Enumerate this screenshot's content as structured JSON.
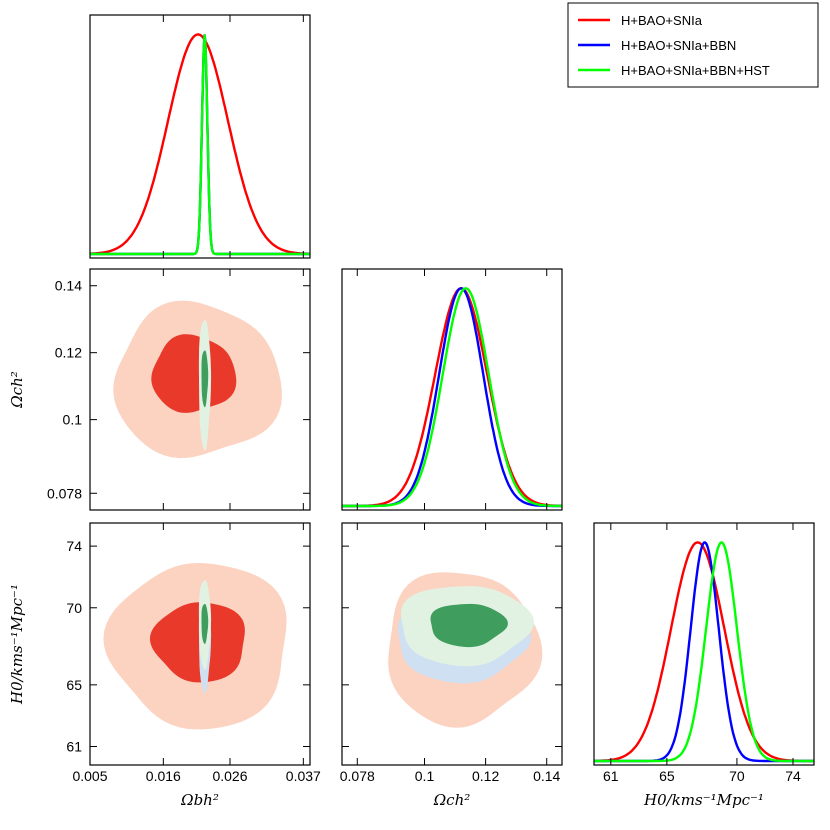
{
  "chart_data": {
    "type": "triangle-corner",
    "legend": {
      "placement": "top-right",
      "entries": [
        {
          "label": "H+BAO+SNIa",
          "color": "#ff0000"
        },
        {
          "label": "H+BAO+SNIa+BBN",
          "color": "#0000ff"
        },
        {
          "label": "H+BAO+SNIa+BBN+HST",
          "color": "#00ff00"
        }
      ]
    },
    "parameters": [
      {
        "id": "omega_b",
        "label": "Ωbh²",
        "range": [
          0.005,
          0.038
        ],
        "ticks": [
          0.005,
          0.016,
          0.026,
          0.037
        ],
        "tick_labels": [
          "0.005",
          "0.016",
          "0.026",
          "0.037"
        ]
      },
      {
        "id": "omega_c",
        "label": "Ωch²",
        "range": [
          0.073,
          0.145
        ],
        "ticks": [
          0.078,
          0.1,
          0.12,
          0.14
        ],
        "tick_labels": [
          "0.078",
          "0.1",
          "0.12",
          "0.14"
        ]
      },
      {
        "id": "H0",
        "label": "H0/kms⁻¹Mpc⁻¹",
        "range": [
          59.8,
          75.5
        ],
        "ticks": [
          61,
          65,
          70,
          74
        ],
        "tick_labels": [
          "61",
          "65",
          "70",
          "74"
        ]
      }
    ],
    "marginals": [
      {
        "param": "omega_b",
        "series": [
          {
            "name": "H+BAO+SNIa",
            "color": "#ff0000",
            "mean": 0.0212,
            "sigma": 0.0045
          },
          {
            "name": "H+BAO+SNIa+BBN",
            "color": "#0000ff",
            "mean": 0.0222,
            "sigma": 0.0004
          },
          {
            "name": "H+BAO+SNIa+BBN+HST",
            "color": "#00ff00",
            "mean": 0.0222,
            "sigma": 0.0004
          }
        ]
      },
      {
        "param": "omega_c",
        "series": [
          {
            "name": "H+BAO+SNIa",
            "color": "#ff0000",
            "mean": 0.112,
            "sigma": 0.0085
          },
          {
            "name": "H+BAO+SNIa+BBN",
            "color": "#0000ff",
            "mean": 0.112,
            "sigma": 0.0072
          },
          {
            "name": "H+BAO+SNIa+BBN+HST",
            "color": "#00ff00",
            "mean": 0.1135,
            "sigma": 0.0075
          }
        ]
      },
      {
        "param": "H0",
        "series": [
          {
            "name": "H+BAO+SNIa",
            "color": "#ff0000",
            "mean": 67.2,
            "sigma": 1.9
          },
          {
            "name": "H+BAO+SNIa+BBN",
            "color": "#0000ff",
            "mean": 67.7,
            "sigma": 1.0
          },
          {
            "name": "H+BAO+SNIa+BBN+HST",
            "color": "#00ff00",
            "mean": 68.9,
            "sigma": 1.1
          }
        ]
      }
    ],
    "contours": [
      {
        "x": "omega_b",
        "y": "omega_c",
        "regions": [
          {
            "name": "H+BAO+SNIa 95%",
            "fill": "#fcd2c1",
            "cx": 0.021,
            "cy": 0.1115,
            "rx": 0.0125,
            "ry": 0.023,
            "angle": -0.55
          },
          {
            "name": "H+BAO+SNIa 68%",
            "fill": "#e8392b",
            "cx": 0.0205,
            "cy": 0.1135,
            "rx": 0.0063,
            "ry": 0.0115,
            "angle": -0.55
          },
          {
            "name": "H+BAO+SNIa+BBN+HST 95%",
            "fill": "#e2f2e2",
            "cx": 0.0222,
            "cy": 0.111,
            "rx": 0.0009,
            "ry": 0.0195,
            "angle": 0.0
          },
          {
            "name": "H+BAO+SNIa+BBN+HST 68%",
            "fill": "#3f9e5e",
            "cx": 0.0222,
            "cy": 0.1125,
            "rx": 0.0005,
            "ry": 0.0085,
            "angle": 0.0
          }
        ]
      },
      {
        "x": "omega_b",
        "y": "H0",
        "regions": [
          {
            "name": "H+BAO+SNIa 95%",
            "fill": "#fcd2c1",
            "cx": 0.0215,
            "cy": 67.6,
            "rx": 0.0135,
            "ry": 5.4,
            "angle": 0.55
          },
          {
            "name": "H+BAO+SNIa 68%",
            "fill": "#e8392b",
            "cx": 0.0215,
            "cy": 67.8,
            "rx": 0.007,
            "ry": 2.6,
            "angle": 0.55
          },
          {
            "name": "H+BAO+SNIa+BBN 95%",
            "fill": "#cfe0f3",
            "cx": 0.0222,
            "cy": 67.9,
            "rx": 0.0009,
            "ry": 3.3,
            "angle": 0.0
          },
          {
            "name": "H+BAO+SNIa+BBN+HST 95%",
            "fill": "#e2f2e2",
            "cx": 0.0222,
            "cy": 69.0,
            "rx": 0.0009,
            "ry": 2.9,
            "angle": 0.0
          },
          {
            "name": "H+BAO+SNIa+BBN+HST 68%",
            "fill": "#3f9e5e",
            "cx": 0.0222,
            "cy": 69.0,
            "rx": 0.0005,
            "ry": 1.3,
            "angle": 0.0
          }
        ]
      },
      {
        "x": "omega_c",
        "y": "H0",
        "regions": [
          {
            "name": "H+BAO+SNIa 95%",
            "fill": "#fcd2c1",
            "cx": 0.112,
            "cy": 67.4,
            "rx": 0.025,
            "ry": 5.0,
            "angle": -0.25
          },
          {
            "name": "H+BAO+SNIa 68%",
            "fill": "#e8392b",
            "cx": 0.113,
            "cy": 67.6,
            "rx": 0.0135,
            "ry": 2.3,
            "angle": -0.25
          },
          {
            "name": "H+BAO+SNIa+BBN 95%",
            "fill": "#cfe0f3",
            "cx": 0.112,
            "cy": 67.9,
            "rx": 0.0215,
            "ry": 2.7,
            "angle": 0.0
          },
          {
            "name": "H+BAO+SNIa+BBN+HST 95%",
            "fill": "#e2f2e2",
            "cx": 0.113,
            "cy": 68.9,
            "rx": 0.0215,
            "ry": 2.6,
            "angle": 0.0
          },
          {
            "name": "H+BAO+SNIa+BBN+HST 68%",
            "fill": "#3f9e5e",
            "cx": 0.114,
            "cy": 68.9,
            "rx": 0.0125,
            "ry": 1.4,
            "angle": 0.0
          }
        ]
      }
    ]
  }
}
